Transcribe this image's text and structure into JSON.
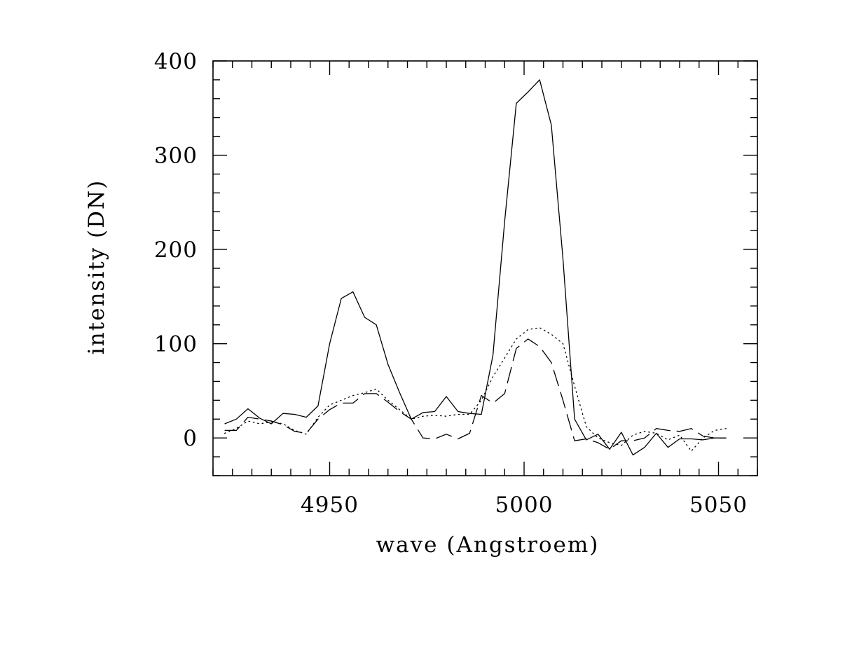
{
  "chart_data": {
    "type": "line",
    "xlabel": "wave (Angstroem)",
    "ylabel": "intensity (DN)",
    "xlim": [
      4920,
      5060
    ],
    "ylim": [
      -40,
      400
    ],
    "x_ticks": [
      4950,
      5000,
      5050
    ],
    "x_tick_labels": [
      "4950",
      "5000",
      "5050"
    ],
    "y_ticks": [
      0,
      100,
      200,
      300,
      400
    ],
    "y_tick_labels": [
      "0",
      "100",
      "200",
      "300",
      "400"
    ],
    "x_minor_step": 5,
    "y_minor_step": 20,
    "grid": false,
    "legend": "none",
    "series": [
      {
        "style": "solid",
        "x": [
          4923,
          4926,
          4929,
          4932,
          4935,
          4938,
          4941,
          4944,
          4947,
          4950,
          4953,
          4956,
          4959,
          4962,
          4965,
          4968,
          4971,
          4974,
          4977,
          4980,
          4983,
          4986,
          4989,
          4992,
          4995,
          4998,
          5001,
          5004,
          5007,
          5010,
          5013,
          5016,
          5019,
          5022,
          5025,
          5028,
          5031,
          5034,
          5037,
          5040,
          5043,
          5046,
          5049,
          5052
        ],
        "y": [
          15,
          20,
          31,
          21,
          15,
          26,
          25,
          22,
          34,
          100,
          148,
          155,
          128,
          120,
          78,
          48,
          20,
          27,
          28,
          44,
          28,
          26,
          25,
          88,
          230,
          355,
          367,
          380,
          332,
          190,
          20,
          -2,
          4,
          -12,
          6,
          -18,
          -10,
          5,
          -10,
          -1,
          -1,
          -2,
          0,
          0
        ]
      },
      {
        "style": "dotted",
        "x": [
          4923,
          4926,
          4929,
          4932,
          4935,
          4938,
          4941,
          4944,
          4947,
          4950,
          4953,
          4956,
          4959,
          4962,
          4965,
          4968,
          4971,
          4974,
          4977,
          4980,
          4983,
          4986,
          4989,
          4992,
          4995,
          4998,
          5001,
          5004,
          5007,
          5010,
          5013,
          5016,
          5019,
          5022,
          5025,
          5028,
          5031,
          5034,
          5037,
          5040,
          5043,
          5046,
          5049,
          5052
        ],
        "y": [
          5,
          10,
          18,
          15,
          17,
          15,
          8,
          4,
          22,
          35,
          40,
          45,
          48,
          52,
          40,
          30,
          20,
          23,
          24,
          23,
          25,
          25,
          40,
          65,
          85,
          105,
          115,
          117,
          110,
          100,
          55,
          12,
          0,
          -5,
          -8,
          3,
          7,
          5,
          -2,
          3,
          -14,
          0,
          8,
          10
        ]
      },
      {
        "style": "dashed",
        "x": [
          4923,
          4926,
          4929,
          4932,
          4935,
          4938,
          4941,
          4944,
          4947,
          4950,
          4953,
          4956,
          4959,
          4962,
          4965,
          4968,
          4971,
          4974,
          4977,
          4980,
          4983,
          4986,
          4989,
          4992,
          4995,
          4998,
          5001,
          5004,
          5007,
          5010,
          5013,
          5016,
          5019,
          5022,
          5025,
          5028,
          5031,
          5034,
          5037,
          5040,
          5043,
          5046,
          5049,
          5052
        ],
        "y": [
          8,
          8,
          22,
          20,
          18,
          14,
          7,
          5,
          20,
          30,
          37,
          37,
          47,
          47,
          38,
          28,
          20,
          0,
          -1,
          4,
          -1,
          5,
          45,
          37,
          47,
          95,
          105,
          97,
          80,
          40,
          -3,
          -1,
          -5,
          -12,
          -3,
          -3,
          0,
          10,
          8,
          7,
          10,
          2,
          0,
          0
        ]
      }
    ]
  }
}
